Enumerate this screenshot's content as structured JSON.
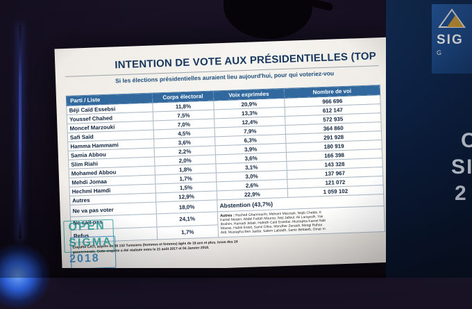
{
  "chart_data": {
    "type": "table",
    "title": "INTENTION DE VOTE AUX PRÉSIDENTIELLES (TOP",
    "subtitle": "Si les élections présidentielles auraient lieu aujourd'hui, pour qui voteriez-vou",
    "columns": [
      "Parti / Liste",
      "Corps électoral",
      "Voix exprimées",
      "Nombre de voi"
    ],
    "rows": [
      {
        "party": "Béji Caïd Essebsi",
        "corps": "11,8%",
        "voix": "20,9%",
        "nombre": "966 696"
      },
      {
        "party": "Youssef Chahed",
        "corps": "7,5%",
        "voix": "13,3%",
        "nombre": "612 147"
      },
      {
        "party": "Moncef Marzouki",
        "corps": "7,0%",
        "voix": "12,4%",
        "nombre": "572 935"
      },
      {
        "party": "Safi Saïd",
        "corps": "4,5%",
        "voix": "7,9%",
        "nombre": "364 860"
      },
      {
        "party": "Hamma Hammami",
        "corps": "3,6%",
        "voix": "6,3%",
        "nombre": "291 928"
      },
      {
        "party": "Samia Abbou",
        "corps": "2,2%",
        "voix": "3,9%",
        "nombre": "180 919"
      },
      {
        "party": "Slim Riahi",
        "corps": "2,0%",
        "voix": "3,6%",
        "nombre": "166 398"
      },
      {
        "party": "Mohamed Abbou",
        "corps": "1,8%",
        "voix": "3,1%",
        "nombre": "143 328"
      },
      {
        "party": "Mehdi Jomaa",
        "corps": "1,7%",
        "voix": "3,0%",
        "nombre": "137 967"
      },
      {
        "party": "Hechmi Hamdi",
        "corps": "1,5%",
        "voix": "2,6%",
        "nombre": "121 072"
      },
      {
        "party": "Autres",
        "corps": "12,9%",
        "voix": "22,9%",
        "nombre": "1 059 102"
      }
    ],
    "special_rows": [
      {
        "party": "Ne va pas voter",
        "corps": "18,0%",
        "note": "Abstention (43,7%)"
      },
      {
        "party": "Ne sait pas",
        "corps": "24,1%"
      },
      {
        "party": "Refus",
        "corps": "1,7%"
      }
    ],
    "autres_note": {
      "label": "Autres :",
      "lines": [
        "Rached Ghannouchi, Mohsen Marzouk, Nejib Chebbi, K",
        "Kamel Morjen, Abdel Fattah Mourou, Neji Jalloul, Ali Larayedh, Yas",
        "Ibrahim, Hamadi Jebali, Hafedh Caïd Essebsi, Mustapha Kamel Nab",
        "Moussi, Habib Essid, Samir Dilou, Mondher Zenaidi, Mongi Rahou",
        "Aldi, Mustapha Ben Jaafar, Salem Labiadh, Samir Bettaieb, Omar m"
      ]
    },
    "footnote_lines": [
      "Enquête CATI, auprès de 36 132 Tunisiens (hommes et femmes) âgés de 18 ans et plus, issus des 24",
      "gouvernorats. Cette enquête a été réalisée entre le 21 août 2017 et 04 Janvier 2018."
    ]
  },
  "slide": {
    "watermark": {
      "line1": "OPEN",
      "line2": "SIGMA",
      "line3": "2018"
    }
  },
  "side_panel": {
    "logo_text_top": "SIG",
    "logo_text_bottom": "G",
    "partial_letters": [
      "O",
      "SI",
      "2"
    ]
  },
  "colors": {
    "header_blue": "#31699e",
    "title_navy": "#17365d",
    "watermark_teal": "#2aa5a0",
    "watermark_blue": "#2e86c6",
    "panel_navy": "#0d2a55"
  }
}
